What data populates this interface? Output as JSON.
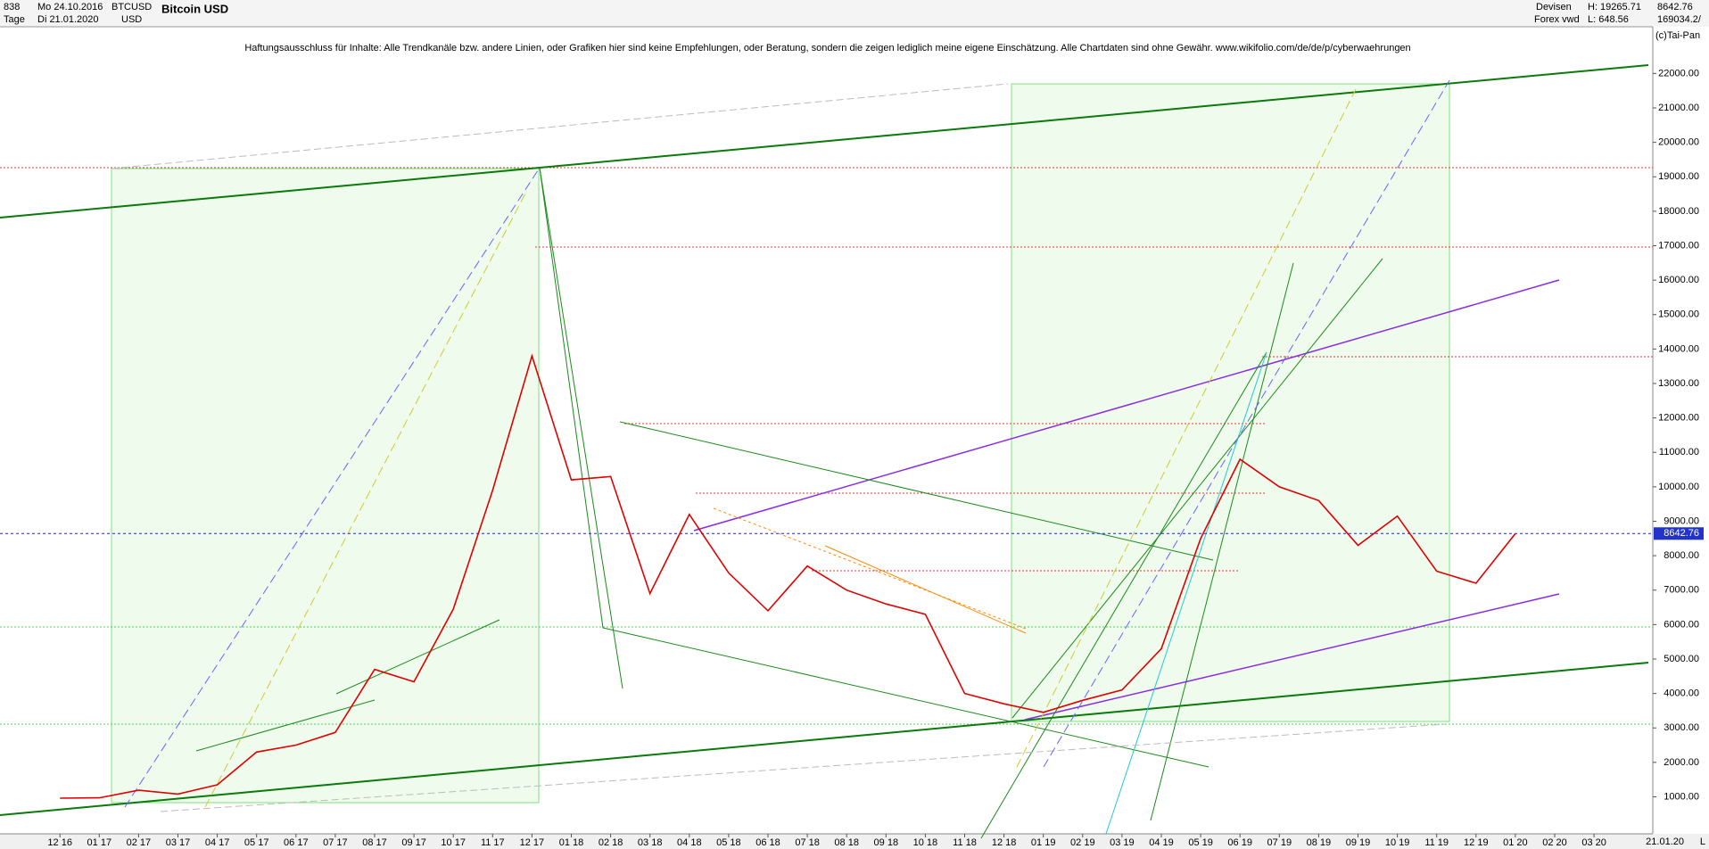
{
  "chart_data": {
    "type": "line",
    "title": "Bitcoin USD",
    "header": {
      "count": "838",
      "period": "Tage",
      "from": "Mo 24.10.2016",
      "to": "Di 21.01.2020",
      "symbol": "BTCUSD",
      "currency": "USD",
      "market": "Devisen",
      "source": "Forex vwd",
      "high": "H: 19265.71",
      "low": "L: 648.56",
      "volume": "169034.2/",
      "copyright": "(c)Tai-Pan",
      "date": "21.01.20",
      "scale": "L"
    },
    "disclaimer": "Haftungsausschluss für Inhalte: Alle Trendkanäle bzw. andere Linien, oder Grafiken hier sind keine Empfehlungen, oder Beratung, sondern die zeigen lediglich meine eigene Einschätzung. Alle Chartdaten sind ohne Gewähr.  www.wikifolio.com/de/de/p/cyberwaehrungen",
    "last_price": 8642.76,
    "x": [
      "12 16",
      "01 17",
      "02 17",
      "03 17",
      "04 17",
      "05 17",
      "06 17",
      "07 17",
      "08 17",
      "09 17",
      "10 17",
      "11 17",
      "12 17",
      "01 18",
      "02 18",
      "03 18",
      "04 18",
      "05 18",
      "06 18",
      "07 18",
      "08 18",
      "09 18",
      "10 18",
      "11 18",
      "12 18",
      "01 19",
      "02 19",
      "03 19",
      "04 19",
      "05 19",
      "06 19",
      "07 19",
      "08 19",
      "09 19",
      "10 19",
      "11 19",
      "12 19",
      "01 20",
      "02 20",
      "03 20"
    ],
    "series": [
      {
        "name": "BTCUSD",
        "color": "#e00000",
        "values": [
          960,
          970,
          1190,
          1080,
          1350,
          2300,
          2500,
          2870,
          4700,
          4340,
          6450,
          9900,
          13800,
          10200,
          10300,
          6900,
          9200,
          7500,
          6400,
          7700,
          7000,
          6600,
          6300,
          4000,
          3700,
          3450,
          3800,
          4100,
          5300,
          8500,
          10800,
          10000,
          9600,
          8300,
          9150,
          7550,
          7200,
          8640,
          null,
          null
        ]
      }
    ],
    "ylim": [
      -75,
      23330
    ],
    "yticks": [
      {
        "value": 1000,
        "label": "1000.00"
      },
      {
        "value": 2000,
        "label": "2000.00"
      },
      {
        "value": 3000,
        "label": "3000.00"
      },
      {
        "value": 4000,
        "label": "4000.00"
      },
      {
        "value": 5000,
        "label": "5000.00"
      },
      {
        "value": 6000,
        "label": "6000.00"
      },
      {
        "value": 7000,
        "label": "7000.00"
      },
      {
        "value": 8000,
        "label": "8000.00"
      },
      {
        "value": 9000,
        "label": "9000.00"
      },
      {
        "value": 10000,
        "label": "10000.00"
      },
      {
        "value": 11000,
        "label": "11000.00"
      },
      {
        "value": 12000,
        "label": "12000.00"
      },
      {
        "value": 13000,
        "label": "13000.00"
      },
      {
        "value": 14000,
        "label": "14000.00"
      },
      {
        "value": 15000,
        "label": "15000.00"
      },
      {
        "value": 16000,
        "label": "16000.00"
      },
      {
        "value": 17000,
        "label": "17000.00"
      },
      {
        "value": 18000,
        "label": "18000.00"
      },
      {
        "value": 19000,
        "label": "19000.00"
      },
      {
        "value": 20000,
        "label": "20000.00"
      },
      {
        "value": 21000,
        "label": "21000.00"
      },
      {
        "value": 22000,
        "label": "22000.00"
      }
    ]
  }
}
